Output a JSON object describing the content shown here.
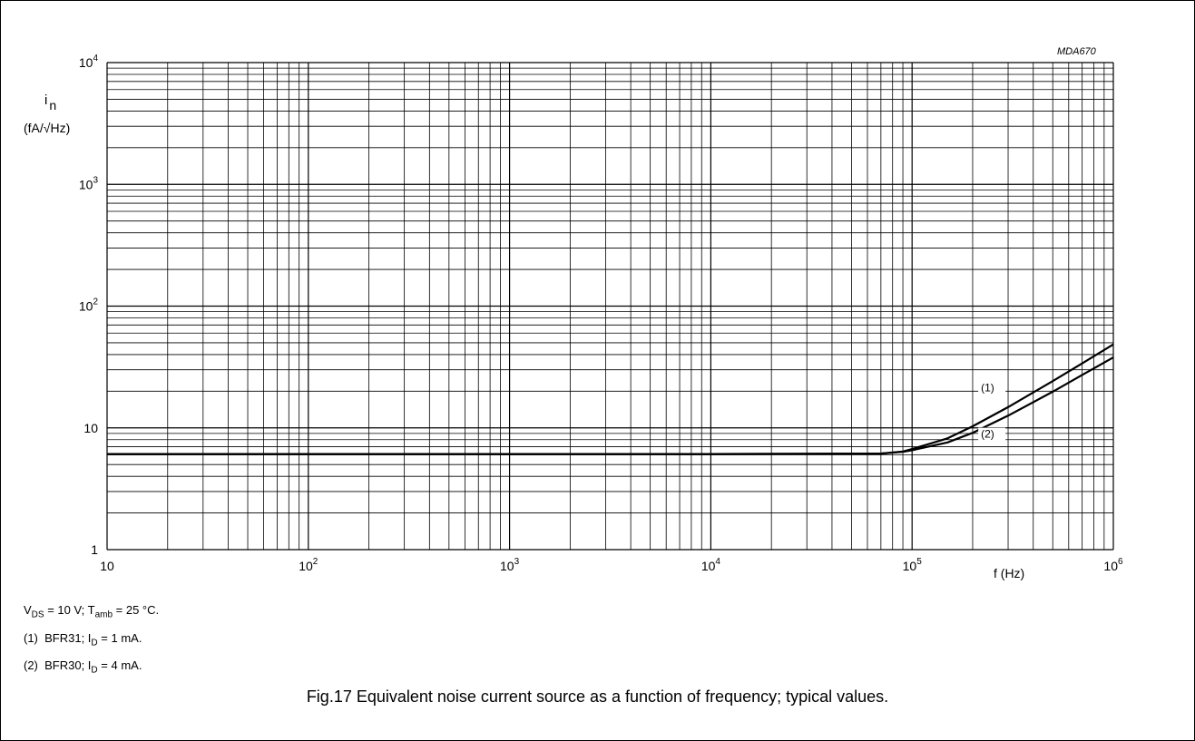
{
  "figure_id": "MDA670",
  "caption": "Fig.17  Equivalent noise current source as a function of frequency; typical values.",
  "conditions": {
    "line": "V_DS = 10 V; T_amb = 25 °C.",
    "vds": "V",
    "vds_sub": "DS",
    "vds_rest": " = 10 V; T",
    "tamb_sub": "amb",
    "tamb_rest": " = 25 °C."
  },
  "notes": [
    {
      "marker": "(1)",
      "text": "BFR31; I",
      "sub": "D",
      "rest": " = 1 mA."
    },
    {
      "marker": "(2)",
      "text": "BFR30; I",
      "sub": "D",
      "rest": " = 4 mA."
    }
  ],
  "chart_data": {
    "type": "line",
    "xlabel": "f (Hz)",
    "ylabel_symbol": "i",
    "ylabel_sub": "n",
    "ylabel_unit": "(fA/√Hz)",
    "xscale": "log",
    "yscale": "log",
    "xlim": [
      10,
      1000000
    ],
    "ylim": [
      1,
      10000
    ],
    "grid": true,
    "x_ticks": [
      {
        "base": "10",
        "exp": ""
      },
      {
        "base": "10",
        "exp": "2"
      },
      {
        "base": "10",
        "exp": "3"
      },
      {
        "base": "10",
        "exp": "4"
      },
      {
        "base": "10",
        "exp": "5"
      },
      {
        "base": "10",
        "exp": "6"
      }
    ],
    "y_ticks": [
      {
        "base": "1",
        "exp": ""
      },
      {
        "base": "10",
        "exp": ""
      },
      {
        "base": "10",
        "exp": "2"
      },
      {
        "base": "10",
        "exp": "3"
      },
      {
        "base": "10",
        "exp": "4"
      }
    ],
    "series": [
      {
        "name": "(1)",
        "x": [
          10,
          1000,
          10000,
          70000,
          90000,
          100000,
          150000,
          200000,
          300000,
          500000,
          700000,
          1000000
        ],
        "y": [
          6.1,
          6.1,
          6.1,
          6.15,
          6.4,
          6.7,
          8.2,
          10.3,
          14.8,
          24.2,
          33.8,
          48.5
        ]
      },
      {
        "name": "(2)",
        "x": [
          10,
          1000,
          10000,
          70000,
          90000,
          100000,
          150000,
          200000,
          300000,
          500000,
          700000,
          1000000
        ],
        "y": [
          6.1,
          6.1,
          6.1,
          6.15,
          6.35,
          6.55,
          7.6,
          9.1,
          12.6,
          19.8,
          27.2,
          37.9
        ]
      }
    ]
  }
}
